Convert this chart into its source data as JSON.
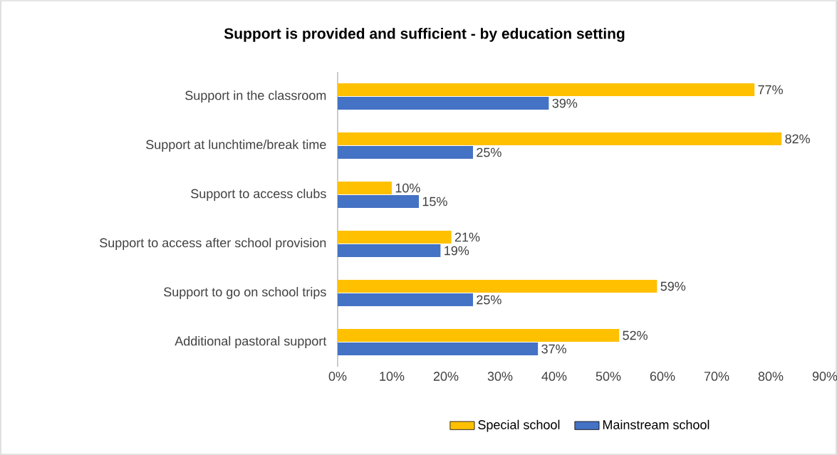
{
  "chart_data": {
    "type": "bar",
    "orientation": "horizontal",
    "title": "Support is provided and sufficient - by education setting",
    "categories": [
      "Support in the classroom",
      "Support at lunchtime/break time",
      "Support to access clubs",
      "Support to access after school provision",
      "Support to go on school trips",
      "Additional pastoral support"
    ],
    "series": [
      {
        "name": "Special school",
        "color": "#ffc000",
        "values": [
          77,
          82,
          10,
          21,
          59,
          52
        ],
        "value_labels": [
          "77%",
          "82%",
          "10%",
          "21%",
          "59%",
          "52%"
        ]
      },
      {
        "name": "Mainstream school",
        "color": "#4472c4",
        "values": [
          39,
          25,
          15,
          19,
          25,
          37
        ],
        "value_labels": [
          "39%",
          "25%",
          "15%",
          "19%",
          "25%",
          "37%"
        ]
      }
    ],
    "xlim": [
      0,
      90
    ],
    "xticks": [
      {
        "value": 0,
        "label": "0%"
      },
      {
        "value": 10,
        "label": "10%"
      },
      {
        "value": 20,
        "label": "20%"
      },
      {
        "value": 30,
        "label": "30%"
      },
      {
        "value": 40,
        "label": "40%"
      },
      {
        "value": 50,
        "label": "50%"
      },
      {
        "value": 60,
        "label": "60%"
      },
      {
        "value": 70,
        "label": "70%"
      },
      {
        "value": 80,
        "label": "80%"
      },
      {
        "value": 90,
        "label": "90%"
      }
    ],
    "grid": false,
    "legend": "bottom"
  }
}
